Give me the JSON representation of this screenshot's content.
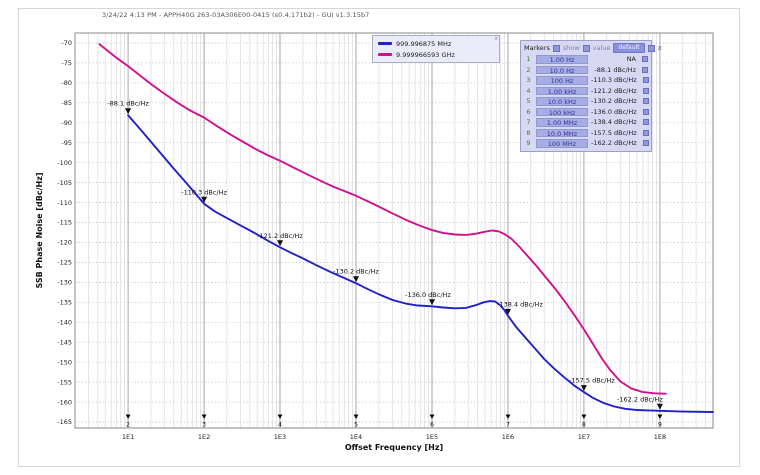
{
  "window": {
    "title": "3/24/22 4:13 PM - APPH40G 263-03A306E00-0415 (s0.4.171b2) - GUI v1.3.15b7"
  },
  "legend": {
    "close_icon": "x",
    "entries": [
      {
        "label": "999.996875 MHz",
        "color": "#2121c8"
      },
      {
        "label": "9.999966593 GHz",
        "color": "#cf1190"
      }
    ]
  },
  "markers_panel": {
    "title": "Markers",
    "show_label": "show",
    "value_label": "value",
    "default_button": "default",
    "close_icon": "x",
    "rows": [
      {
        "num": "1",
        "freq": "1.00 Hz",
        "value": "NA"
      },
      {
        "num": "2",
        "freq": "10.0 Hz",
        "value": "-88.1 dBc/Hz"
      },
      {
        "num": "3",
        "freq": "100 Hz",
        "value": "-110.3 dBc/Hz"
      },
      {
        "num": "4",
        "freq": "1.00 kHz",
        "value": "-121.2 dBc/Hz"
      },
      {
        "num": "5",
        "freq": "10.0 kHz",
        "value": "-130.2 dBc/Hz"
      },
      {
        "num": "6",
        "freq": "100 kHz",
        "value": "-136.0 dBc/Hz"
      },
      {
        "num": "7",
        "freq": "1.00 MHz",
        "value": "-138.4 dBc/Hz"
      },
      {
        "num": "8",
        "freq": "10.0 MHz",
        "value": "-157.5 dBc/Hz"
      },
      {
        "num": "9",
        "freq": "100 MHz",
        "value": "-162.2 dBc/Hz"
      }
    ]
  },
  "chart_data": {
    "type": "line",
    "xlabel": "Offset Frequency [Hz]",
    "ylabel": "SSB Phase Noise [dBc/Hz]",
    "x_scale": "log",
    "grid": true,
    "xlim": [
      2,
      500000000.0
    ],
    "ylim": [
      -166.5,
      -67.5
    ],
    "x_ticks": [
      {
        "label": "1E1",
        "value": 10
      },
      {
        "label": "1E2",
        "value": 100
      },
      {
        "label": "1E3",
        "value": 1000
      },
      {
        "label": "1E4",
        "value": 10000
      },
      {
        "label": "1E5",
        "value": 100000
      },
      {
        "label": "1E6",
        "value": 1000000
      },
      {
        "label": "1E7",
        "value": 10000000
      },
      {
        "label": "1E8",
        "value": 100000000
      }
    ],
    "y_ticks": [
      -70,
      -75,
      -80,
      -85,
      -90,
      -95,
      -100,
      -105,
      -110,
      -115,
      -120,
      -125,
      -130,
      -135,
      -140,
      -145,
      -150,
      -155,
      -160,
      -165
    ],
    "series": [
      {
        "name": "999.996875 MHz",
        "color": "#2121c8",
        "points": [
          [
            10,
            -88.1
          ],
          [
            13,
            -90.6
          ],
          [
            17,
            -93.2
          ],
          [
            22,
            -95.7
          ],
          [
            30,
            -98.7
          ],
          [
            40,
            -101.5
          ],
          [
            55,
            -104.5
          ],
          [
            75,
            -107.5
          ],
          [
            100,
            -110.3
          ],
          [
            140,
            -112.3
          ],
          [
            200,
            -113.9
          ],
          [
            300,
            -115.7
          ],
          [
            450,
            -117.5
          ],
          [
            700,
            -119.6
          ],
          [
            1000,
            -121.2
          ],
          [
            1400,
            -122.6
          ],
          [
            2000,
            -124.0
          ],
          [
            3000,
            -125.7
          ],
          [
            4500,
            -127.3
          ],
          [
            7000,
            -128.9
          ],
          [
            10000,
            -130.2
          ],
          [
            14000,
            -131.6
          ],
          [
            20000,
            -133.0
          ],
          [
            30000,
            -134.4
          ],
          [
            45000,
            -135.3
          ],
          [
            65000,
            -135.8
          ],
          [
            100000,
            -136.0
          ],
          [
            140000,
            -136.3
          ],
          [
            200000,
            -136.5
          ],
          [
            280000,
            -136.4
          ],
          [
            380000,
            -135.7
          ],
          [
            480000,
            -135.0
          ],
          [
            580000,
            -134.7
          ],
          [
            680000,
            -134.8
          ],
          [
            800000,
            -135.8
          ],
          [
            900000,
            -137.0
          ],
          [
            1000000,
            -138.4
          ],
          [
            1300000,
            -141.3
          ],
          [
            1700000,
            -143.9
          ],
          [
            2200000,
            -146.3
          ],
          [
            3000000,
            -149.2
          ],
          [
            4000000,
            -151.5
          ],
          [
            5500000,
            -153.8
          ],
          [
            7500000,
            -155.9
          ],
          [
            10000000,
            -157.5
          ],
          [
            13000000,
            -158.9
          ],
          [
            18000000,
            -160.2
          ],
          [
            25000000,
            -161.1
          ],
          [
            35000000,
            -161.7
          ],
          [
            50000000,
            -162.0
          ],
          [
            70000000,
            -162.1
          ],
          [
            100000000,
            -162.2
          ],
          [
            200000000,
            -162.4
          ],
          [
            500000000,
            -162.5
          ]
        ]
      },
      {
        "name": "9.999966593 GHz",
        "color": "#cf1190",
        "points": [
          [
            4.2,
            -70.3
          ],
          [
            5.5,
            -72.1
          ],
          [
            7,
            -73.7
          ],
          [
            10,
            -75.8
          ],
          [
            14,
            -78.0
          ],
          [
            20,
            -80.3
          ],
          [
            30,
            -82.7
          ],
          [
            45,
            -85.0
          ],
          [
            65,
            -86.9
          ],
          [
            100,
            -88.7
          ],
          [
            150,
            -90.9
          ],
          [
            220,
            -92.9
          ],
          [
            320,
            -94.7
          ],
          [
            500,
            -96.8
          ],
          [
            700,
            -98.2
          ],
          [
            1000,
            -99.5
          ],
          [
            1500,
            -101.2
          ],
          [
            2200,
            -102.8
          ],
          [
            3200,
            -104.3
          ],
          [
            5000,
            -106.0
          ],
          [
            7000,
            -107.1
          ],
          [
            10000,
            -108.3
          ],
          [
            14000,
            -109.6
          ],
          [
            20000,
            -111.0
          ],
          [
            30000,
            -112.7
          ],
          [
            45000,
            -114.3
          ],
          [
            65000,
            -115.6
          ],
          [
            100000,
            -116.9
          ],
          [
            140000,
            -117.6
          ],
          [
            200000,
            -118.0
          ],
          [
            280000,
            -118.1
          ],
          [
            380000,
            -117.8
          ],
          [
            500000,
            -117.3
          ],
          [
            620000,
            -117.0
          ],
          [
            750000,
            -117.2
          ],
          [
            900000,
            -117.9
          ],
          [
            1100000,
            -119.0
          ],
          [
            1400000,
            -121.0
          ],
          [
            1800000,
            -123.3
          ],
          [
            2400000,
            -126.0
          ],
          [
            3200000,
            -128.9
          ],
          [
            4300000,
            -131.9
          ],
          [
            5800000,
            -135.2
          ],
          [
            7800000,
            -138.7
          ],
          [
            10000000,
            -141.8
          ],
          [
            13000000,
            -145.3
          ],
          [
            17000000,
            -148.9
          ],
          [
            22000000,
            -151.9
          ],
          [
            30000000,
            -154.8
          ],
          [
            42000000,
            -156.6
          ],
          [
            60000000,
            -157.5
          ],
          [
            85000000,
            -157.8
          ],
          [
            120000000,
            -157.9
          ]
        ]
      }
    ],
    "annotations": [
      {
        "series": 0,
        "freq": 10,
        "value": -88.1,
        "label": "-88.1 dBc/Hz",
        "dx": 0
      },
      {
        "series": 0,
        "freq": 100,
        "value": -110.3,
        "label": "-110.3 dBc/Hz",
        "dx": 0
      },
      {
        "series": 0,
        "freq": 1000,
        "value": -121.2,
        "label": "-121.2 dBc/Hz",
        "dx": 0
      },
      {
        "series": 0,
        "freq": 10000,
        "value": -130.2,
        "label": "-130.2 dBc/Hz",
        "dx": 0
      },
      {
        "series": 0,
        "freq": 100000,
        "value": -136.0,
        "label": "-136.0 dBc/Hz",
        "dx": -4
      },
      {
        "series": 0,
        "freq": 1000000,
        "value": -138.4,
        "label": "-138.4 dBc/Hz",
        "dx": 12
      },
      {
        "series": 0,
        "freq": 10000000,
        "value": -157.5,
        "label": "-157.5 dBc/Hz",
        "dx": 8
      },
      {
        "series": 0,
        "freq": 100000000,
        "value": -162.2,
        "label": "-162.2 dBc/Hz",
        "dx": -20
      }
    ],
    "bottom_markers": [
      {
        "num": "2",
        "freq": 10
      },
      {
        "num": "3",
        "freq": 100
      },
      {
        "num": "4",
        "freq": 1000
      },
      {
        "num": "5",
        "freq": 10000
      },
      {
        "num": "6",
        "freq": 100000
      },
      {
        "num": "7",
        "freq": 1000000
      },
      {
        "num": "8",
        "freq": 10000000
      },
      {
        "num": "9",
        "freq": 100000000
      }
    ]
  }
}
